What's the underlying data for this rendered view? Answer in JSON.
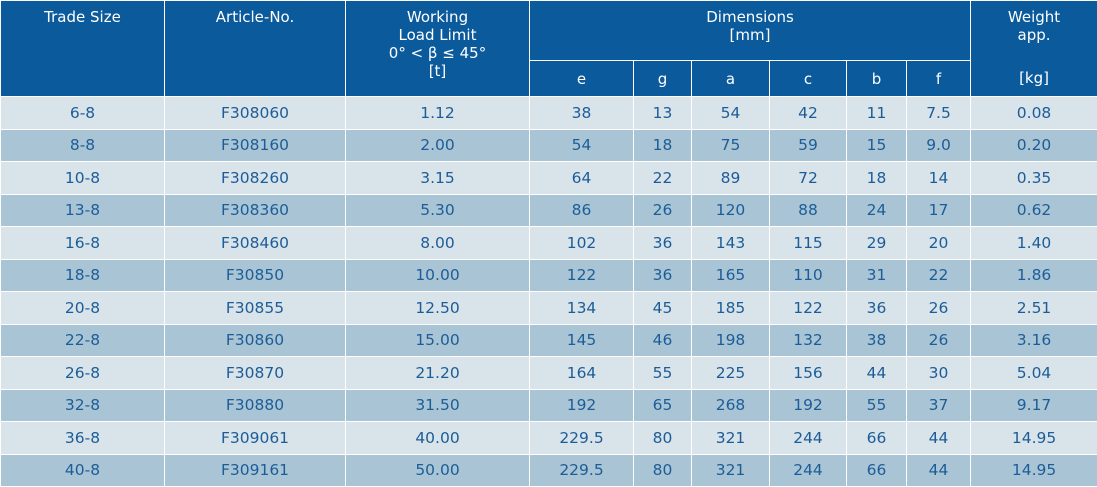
{
  "header": {
    "trade_size": "Trade Size",
    "article_no": "Article-No.",
    "wll_line1": "Working",
    "wll_line2": "Load Limit",
    "wll_line3": "0° < β ≤ 45°",
    "wll_line4": "[t]",
    "dimensions": "Dimensions",
    "dimensions_unit": "[mm]",
    "weight_line1": "Weight",
    "weight_line2": "app.",
    "weight_unit": "[kg]",
    "dim_cols": [
      "e",
      "g",
      "a",
      "c",
      "b",
      "f"
    ]
  },
  "rows": [
    {
      "trade_size": "6-8",
      "article_no": "F308060",
      "wll": "1.12",
      "e": "38",
      "g": "13",
      "a": "54",
      "c": "42",
      "b": "11",
      "f": "7.5",
      "weight": "0.08"
    },
    {
      "trade_size": "8-8",
      "article_no": "F308160",
      "wll": "2.00",
      "e": "54",
      "g": "18",
      "a": "75",
      "c": "59",
      "b": "15",
      "f": "9.0",
      "weight": "0.20"
    },
    {
      "trade_size": "10-8",
      "article_no": "F308260",
      "wll": "3.15",
      "e": "64",
      "g": "22",
      "a": "89",
      "c": "72",
      "b": "18",
      "f": "14",
      "weight": "0.35"
    },
    {
      "trade_size": "13-8",
      "article_no": "F308360",
      "wll": "5.30",
      "e": "86",
      "g": "26",
      "a": "120",
      "c": "88",
      "b": "24",
      "f": "17",
      "weight": "0.62"
    },
    {
      "trade_size": "16-8",
      "article_no": "F308460",
      "wll": "8.00",
      "e": "102",
      "g": "36",
      "a": "143",
      "c": "115",
      "b": "29",
      "f": "20",
      "weight": "1.40"
    },
    {
      "trade_size": "18-8",
      "article_no": "F30850",
      "wll": "10.00",
      "e": "122",
      "g": "36",
      "a": "165",
      "c": "110",
      "b": "31",
      "f": "22",
      "weight": "1.86"
    },
    {
      "trade_size": "20-8",
      "article_no": "F30855",
      "wll": "12.50",
      "e": "134",
      "g": "45",
      "a": "185",
      "c": "122",
      "b": "36",
      "f": "26",
      "weight": "2.51"
    },
    {
      "trade_size": "22-8",
      "article_no": "F30860",
      "wll": "15.00",
      "e": "145",
      "g": "46",
      "a": "198",
      "c": "132",
      "b": "38",
      "f": "26",
      "weight": "3.16"
    },
    {
      "trade_size": "26-8",
      "article_no": "F30870",
      "wll": "21.20",
      "e": "164",
      "g": "55",
      "a": "225",
      "c": "156",
      "b": "44",
      "f": "30",
      "weight": "5.04"
    },
    {
      "trade_size": "32-8",
      "article_no": "F30880",
      "wll": "31.50",
      "e": "192",
      "g": "65",
      "a": "268",
      "c": "192",
      "b": "55",
      "f": "37",
      "weight": "9.17"
    },
    {
      "trade_size": "36-8",
      "article_no": "F309061",
      "wll": "40.00",
      "e": "229.5",
      "g": "80",
      "a": "321",
      "c": "244",
      "b": "66",
      "f": "44",
      "weight": "14.95"
    },
    {
      "trade_size": "40-8",
      "article_no": "F309161",
      "wll": "50.00",
      "e": "229.5",
      "g": "80",
      "a": "321",
      "c": "244",
      "b": "66",
      "f": "44",
      "weight": "14.95"
    }
  ],
  "colors": {
    "header_bg": "#0a5a9c",
    "row_light": "#d9e3ea",
    "row_dark": "#a9c5d5",
    "body_text": "#1c5d98"
  }
}
